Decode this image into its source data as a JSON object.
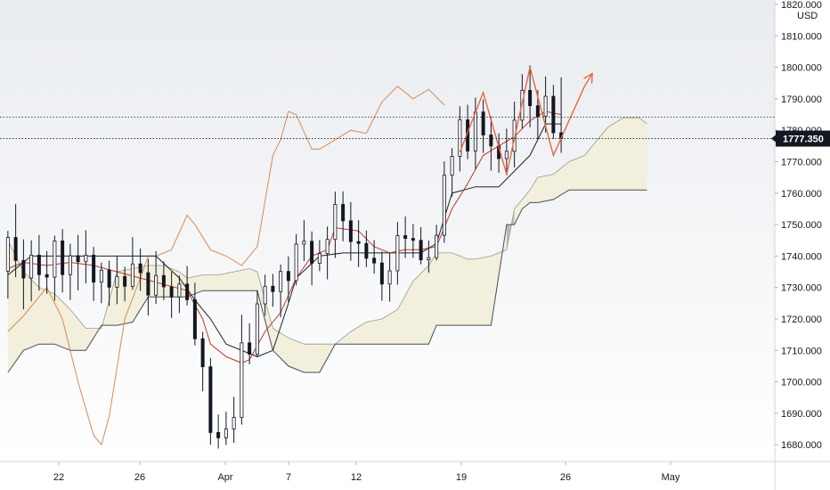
{
  "chart_data": {
    "type": "candlestick",
    "title": "",
    "currency_label": "USD",
    "ylim": [
      1675,
      1822
    ],
    "y_ticks": [
      "1820.000",
      "1810.000",
      "1800.000",
      "1790.000",
      "1780.000",
      "1770.000",
      "1760.000",
      "1750.000",
      "1740.000",
      "1730.000",
      "1720.000",
      "1710.000",
      "1700.000",
      "1690.000",
      "1680.000"
    ],
    "x_ticks": [
      "22",
      "26",
      "Apr",
      "7",
      "12",
      "19",
      "26",
      "May"
    ],
    "last_price": "1777.350",
    "reference_price": 1784.2,
    "colors": {
      "background_top": "#e9ecf0",
      "background_bottom": "#ffffff",
      "candle": "#131722",
      "conversion_line": "#c0392b",
      "base_line": "#1e2228",
      "lagging_span": "#d98a52",
      "cloud_bullish": "#f2efdc",
      "cloud_bearish": "#b8bbbf",
      "forecast": "#e8673f",
      "price_tag": "#131722"
    },
    "candles": [
      [
        1,
        1735.2,
        1748.0,
        1726.5,
        1745.9
      ],
      [
        2,
        1745.9,
        1756.5,
        1733.3,
        1738.6
      ],
      [
        3,
        1738.6,
        1745.3,
        1723.0,
        1733.0
      ],
      [
        4,
        1733.0,
        1745.0,
        1725.6,
        1740.3
      ],
      [
        5,
        1740.3,
        1746.7,
        1729.0,
        1734.1
      ],
      [
        6,
        1734.1,
        1741.6,
        1728.0,
        1733.3
      ],
      [
        7,
        1733.3,
        1746.5,
        1725.8,
        1744.8
      ],
      [
        8,
        1744.8,
        1748.6,
        1728.4,
        1734.1
      ],
      [
        9,
        1734.1,
        1743.9,
        1726.0,
        1740.1
      ],
      [
        10,
        1740.1,
        1746.7,
        1729.1,
        1738.2
      ],
      [
        11,
        1738.2,
        1748.2,
        1731.3,
        1740.3
      ],
      [
        12,
        1740.3,
        1742.9,
        1725.7,
        1731.7
      ],
      [
        13,
        1731.7,
        1737.9,
        1725.0,
        1735.5
      ],
      [
        14,
        1735.5,
        1738.5,
        1724.1,
        1730.1
      ],
      [
        15,
        1730.1,
        1739.9,
        1724.7,
        1733.5
      ],
      [
        16,
        1733.5,
        1736.6,
        1725.6,
        1730.4
      ],
      [
        17,
        1730.4,
        1746.0,
        1729.3,
        1737.5
      ],
      [
        18,
        1737.5,
        1742.4,
        1728.9,
        1734.7
      ],
      [
        19,
        1734.7,
        1739.1,
        1721.1,
        1727.6
      ],
      [
        20,
        1727.6,
        1741.6,
        1724.8,
        1733.8
      ],
      [
        21,
        1733.8,
        1738.3,
        1726.0,
        1730.2
      ],
      [
        22,
        1730.2,
        1735.0,
        1720.3,
        1727.0
      ],
      [
        23,
        1727.0,
        1733.8,
        1721.9,
        1731.1
      ],
      [
        24,
        1731.1,
        1736.8,
        1724.3,
        1726.1
      ],
      [
        25,
        1726.1,
        1731.5,
        1711.6,
        1713.7
      ],
      [
        26,
        1713.7,
        1715.9,
        1697.0,
        1704.8
      ],
      [
        27,
        1704.8,
        1707.6,
        1680.0,
        1683.9
      ],
      [
        28,
        1683.9,
        1689.6,
        1678.8,
        1682.2
      ],
      [
        29,
        1682.2,
        1690.5,
        1679.9,
        1685.0
      ],
      [
        30,
        1685.0,
        1695.2,
        1680.6,
        1688.7
      ],
      [
        31,
        1688.7,
        1721.3,
        1686.4,
        1712.4
      ],
      [
        32,
        1712.4,
        1718.6,
        1705.6,
        1708.8
      ],
      [
        33,
        1708.8,
        1729.1,
        1707.8,
        1724.8
      ],
      [
        34,
        1724.8,
        1734.1,
        1721.0,
        1730.4
      ],
      [
        35,
        1730.4,
        1734.3,
        1723.9,
        1728.7
      ],
      [
        36,
        1728.7,
        1737.3,
        1720.5,
        1735.1
      ],
      [
        37,
        1735.1,
        1739.9,
        1725.4,
        1732.2
      ],
      [
        38,
        1732.2,
        1747.0,
        1730.7,
        1743.8
      ],
      [
        39,
        1743.8,
        1751.4,
        1738.4,
        1744.7
      ],
      [
        40,
        1744.7,
        1747.8,
        1730.7,
        1737.7
      ],
      [
        41,
        1737.7,
        1745.1,
        1735.2,
        1740.8
      ],
      [
        42,
        1740.8,
        1749.4,
        1732.6,
        1745.3
      ],
      [
        43,
        1745.3,
        1760.5,
        1739.4,
        1756.4
      ],
      [
        44,
        1756.4,
        1760.6,
        1744.7,
        1751.2
      ],
      [
        45,
        1751.2,
        1757.2,
        1738.5,
        1744.6
      ],
      [
        46,
        1744.6,
        1751.4,
        1736.5,
        1744.0
      ],
      [
        47,
        1744.0,
        1748.1,
        1736.5,
        1739.3
      ],
      [
        48,
        1739.3,
        1745.1,
        1734.4,
        1737.8
      ],
      [
        49,
        1737.8,
        1741.4,
        1725.8,
        1731.1
      ],
      [
        50,
        1731.1,
        1741.1,
        1725.5,
        1735.3
      ],
      [
        51,
        1735.3,
        1750.8,
        1730.9,
        1746.5
      ],
      [
        52,
        1746.5,
        1752.6,
        1739.4,
        1745.6
      ],
      [
        53,
        1745.6,
        1750.2,
        1739.4,
        1745.0
      ],
      [
        54,
        1745.0,
        1749.2,
        1737.4,
        1738.8
      ],
      [
        55,
        1738.8,
        1745.0,
        1734.7,
        1739.5
      ],
      [
        56,
        1739.5,
        1749.9,
        1738.6,
        1746.6
      ],
      [
        57,
        1746.6,
        1770.1,
        1744.2,
        1765.7
      ],
      [
        58,
        1765.7,
        1774.3,
        1758.9,
        1771.7
      ],
      [
        59,
        1771.7,
        1787.6,
        1766.9,
        1783.3
      ],
      [
        60,
        1783.3,
        1788.1,
        1770.8,
        1773.4
      ],
      [
        61,
        1773.4,
        1790.4,
        1767.7,
        1785.8
      ],
      [
        62,
        1785.8,
        1789.8,
        1772.8,
        1778.5
      ],
      [
        63,
        1778.5,
        1784.4,
        1767.2,
        1775.0
      ],
      [
        64,
        1775.0,
        1779.0,
        1766.5,
        1771.0
      ],
      [
        65,
        1771.0,
        1780.5,
        1765.7,
        1773.3
      ],
      [
        66,
        1773.3,
        1789.1,
        1768.2,
        1783.2
      ],
      [
        67,
        1783.2,
        1797.8,
        1780.6,
        1792.7
      ],
      [
        68,
        1792.7,
        1800.6,
        1780.9,
        1787.8
      ],
      [
        69,
        1787.8,
        1792.8,
        1777.3,
        1784.4
      ],
      [
        70,
        1784.4,
        1797.1,
        1779.3,
        1790.8
      ],
      [
        71,
        1790.8,
        1794.4,
        1777.3,
        1779.2
      ],
      [
        72,
        1779.2,
        1796.8,
        1772.8,
        1777.4
      ]
    ],
    "conversion_line": [
      [
        1,
        1736
      ],
      [
        3,
        1738
      ],
      [
        6,
        1737
      ],
      [
        9,
        1738
      ],
      [
        12,
        1737
      ],
      [
        15,
        1735
      ],
      [
        18,
        1733
      ],
      [
        21,
        1731
      ],
      [
        24,
        1729
      ],
      [
        26,
        1720
      ],
      [
        27,
        1712
      ],
      [
        29,
        1708
      ],
      [
        31,
        1706
      ],
      [
        32,
        1707
      ],
      [
        34,
        1716
      ],
      [
        36,
        1722
      ],
      [
        38,
        1733
      ],
      [
        40,
        1740
      ],
      [
        42,
        1742
      ],
      [
        43,
        1749
      ],
      [
        46,
        1748
      ],
      [
        48,
        1743
      ],
      [
        50,
        1741
      ],
      [
        52,
        1742
      ],
      [
        54,
        1742
      ],
      [
        56,
        1743
      ],
      [
        58,
        1755
      ],
      [
        60,
        1763
      ],
      [
        62,
        1772
      ],
      [
        64,
        1775
      ],
      [
        66,
        1778
      ],
      [
        68,
        1783
      ],
      [
        70,
        1786
      ],
      [
        72,
        1785
      ]
    ],
    "base_line": [
      [
        1,
        1734
      ],
      [
        4,
        1740
      ],
      [
        8,
        1740
      ],
      [
        12,
        1740
      ],
      [
        16,
        1740
      ],
      [
        20,
        1740
      ],
      [
        23,
        1733
      ],
      [
        25,
        1726
      ],
      [
        27,
        1720
      ],
      [
        29,
        1712
      ],
      [
        33,
        1708
      ],
      [
        35,
        1710
      ],
      [
        37,
        1725
      ],
      [
        38,
        1733
      ],
      [
        41,
        1740
      ],
      [
        44,
        1741
      ],
      [
        47,
        1741
      ],
      [
        50,
        1741
      ],
      [
        52,
        1741
      ],
      [
        54,
        1741
      ],
      [
        56,
        1744
      ],
      [
        58,
        1760
      ],
      [
        61,
        1762
      ],
      [
        64,
        1762
      ],
      [
        66,
        1767
      ],
      [
        68,
        1772
      ],
      [
        70,
        1782
      ],
      [
        72,
        1782
      ]
    ],
    "lagging_span": [
      [
        1,
        1716
      ],
      [
        3,
        1721
      ],
      [
        6,
        1730
      ],
      [
        8,
        1720
      ],
      [
        10,
        1700
      ],
      [
        12,
        1683
      ],
      [
        13,
        1680
      ],
      [
        14,
        1689
      ],
      [
        16,
        1720
      ],
      [
        18,
        1733
      ],
      [
        19,
        1740
      ],
      [
        20,
        1740
      ],
      [
        22,
        1742
      ],
      [
        24,
        1753
      ],
      [
        25,
        1750
      ],
      [
        27,
        1742
      ],
      [
        29,
        1740
      ],
      [
        31,
        1737
      ],
      [
        33,
        1743
      ],
      [
        35,
        1772
      ],
      [
        36,
        1777
      ],
      [
        37,
        1786
      ],
      [
        38,
        1785
      ],
      [
        40,
        1774
      ],
      [
        41,
        1774
      ],
      [
        43,
        1777
      ],
      [
        45,
        1780
      ],
      [
        47,
        1779
      ],
      [
        49,
        1789
      ],
      [
        51,
        1794
      ],
      [
        53,
        1790
      ],
      [
        55,
        1793
      ],
      [
        57,
        1788
      ]
    ],
    "cloud_span_a": [
      [
        1,
        1745
      ],
      [
        3,
        1735
      ],
      [
        5,
        1730
      ],
      [
        7,
        1728
      ],
      [
        9,
        1723
      ],
      [
        11,
        1717
      ],
      [
        13,
        1717
      ],
      [
        15,
        1735
      ],
      [
        17,
        1736
      ],
      [
        19,
        1737
      ],
      [
        21,
        1737
      ],
      [
        23,
        1735
      ],
      [
        24,
        1733
      ],
      [
        26,
        1734
      ],
      [
        28,
        1734
      ],
      [
        30,
        1735
      ],
      [
        32,
        1736
      ],
      [
        33,
        1735
      ],
      [
        35,
        1717
      ],
      [
        37,
        1714
      ],
      [
        39,
        1712
      ],
      [
        41,
        1712
      ],
      [
        43,
        1712
      ],
      [
        45,
        1716
      ],
      [
        47,
        1719
      ],
      [
        49,
        1720
      ],
      [
        51,
        1723
      ],
      [
        53,
        1732
      ],
      [
        55,
        1737
      ],
      [
        56,
        1741
      ],
      [
        58,
        1741
      ],
      [
        60,
        1739
      ],
      [
        61,
        1739
      ],
      [
        63,
        1740
      ],
      [
        65,
        1742
      ],
      [
        66,
        1755
      ],
      [
        67,
        1758
      ],
      [
        68,
        1761
      ],
      [
        69,
        1765
      ],
      [
        71,
        1766
      ],
      [
        73,
        1770
      ],
      [
        75,
        1772
      ],
      [
        77,
        1778
      ],
      [
        78,
        1781
      ],
      [
        80,
        1784
      ],
      [
        82,
        1784
      ],
      [
        83,
        1782
      ]
    ],
    "cloud_span_b": [
      [
        1,
        1703
      ],
      [
        3,
        1710
      ],
      [
        5,
        1712
      ],
      [
        7,
        1712
      ],
      [
        9,
        1710
      ],
      [
        11,
        1710
      ],
      [
        13,
        1718
      ],
      [
        15,
        1718
      ],
      [
        17,
        1719
      ],
      [
        19,
        1727
      ],
      [
        21,
        1727
      ],
      [
        23,
        1727
      ],
      [
        24,
        1727
      ],
      [
        26,
        1729
      ],
      [
        28,
        1729
      ],
      [
        30,
        1729
      ],
      [
        32,
        1729
      ],
      [
        33,
        1729
      ],
      [
        35,
        1710
      ],
      [
        37,
        1705
      ],
      [
        39,
        1703
      ],
      [
        41,
        1703
      ],
      [
        43,
        1712
      ],
      [
        45,
        1712
      ],
      [
        47,
        1712
      ],
      [
        49,
        1712
      ],
      [
        51,
        1712
      ],
      [
        53,
        1712
      ],
      [
        55,
        1712
      ],
      [
        56,
        1718
      ],
      [
        58,
        1718
      ],
      [
        60,
        1718
      ],
      [
        61,
        1718
      ],
      [
        63,
        1718
      ],
      [
        65,
        1750
      ],
      [
        66,
        1750
      ],
      [
        67,
        1755
      ],
      [
        68,
        1757
      ],
      [
        69,
        1757
      ],
      [
        71,
        1758
      ],
      [
        73,
        1761
      ],
      [
        75,
        1761
      ],
      [
        77,
        1761
      ],
      [
        78,
        1761
      ],
      [
        80,
        1761
      ],
      [
        82,
        1761
      ],
      [
        83,
        1761
      ]
    ],
    "forecast_path": [
      [
        59,
        1773
      ],
      [
        62,
        1792
      ],
      [
        65,
        1766
      ],
      [
        68,
        1800
      ],
      [
        71,
        1772
      ],
      [
        75,
        1794
      ],
      [
        76,
        1798
      ]
    ]
  }
}
